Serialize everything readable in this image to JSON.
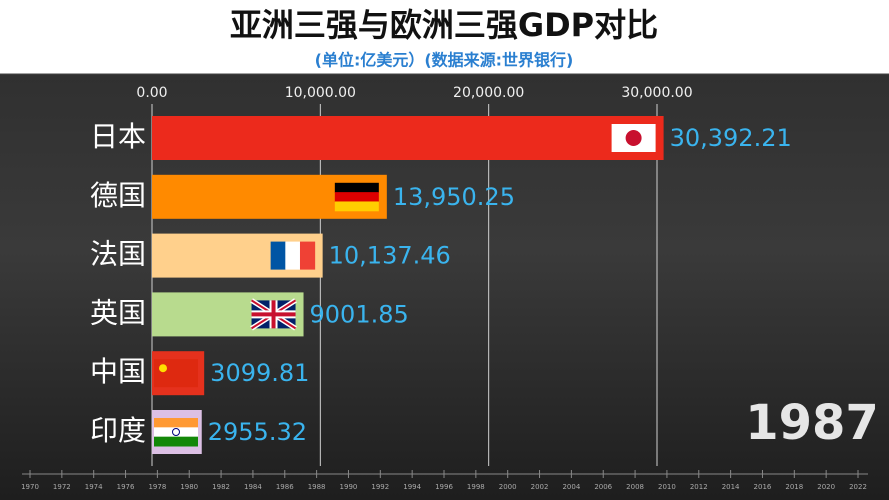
{
  "chart_data": {
    "type": "barh",
    "title": "亚洲三强与欧洲三强GDP对比",
    "subtitle": "(单位:亿美元）(数据来源:世界银行)",
    "categories": [
      "日本",
      "德国",
      "法国",
      "英国",
      "中国",
      "印度"
    ],
    "values": [
      30392.21,
      13950.25,
      10137.46,
      9001.85,
      3099.81,
      2955.32
    ],
    "value_labels": [
      "30,392.21",
      "13,950.25",
      "10,137.46",
      "9001.85",
      "3099.81",
      "2955.32"
    ],
    "colors": [
      "#ec2a1c",
      "#ff8a00",
      "#ffd08c",
      "#b8db8e",
      "#e5311d",
      "#dcc0e4"
    ],
    "xlim": [
      0,
      30000
    ],
    "xticks": [
      {
        "value": 0,
        "label": "0.00"
      },
      {
        "value": 10000,
        "label": "10,000.00"
      },
      {
        "value": 20000,
        "label": "20,000.00"
      },
      {
        "value": 30000,
        "label": "30,000.00"
      }
    ],
    "grid": true,
    "year": "1987",
    "timeline": [
      1970,
      1972,
      1974,
      1976,
      1978,
      1980,
      1982,
      1984,
      1986,
      1988,
      1990,
      1992,
      1994,
      1996,
      1998,
      2000,
      2002,
      2004,
      2006,
      2008,
      2010,
      2012,
      2014,
      2016,
      2018,
      2020,
      2022
    ]
  }
}
